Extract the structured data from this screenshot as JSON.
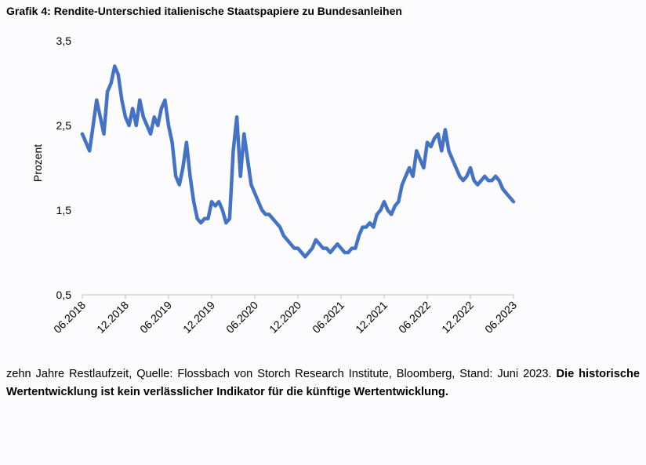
{
  "title": "Grafik 4: Rendite-Unterschied italienische Staatspapiere zu Bundesanleihen",
  "footnote": {
    "source": "zehn Jahre Restlaufzeit, Quelle: Flossbach von Storch Research Institute, Bloomberg, Stand: Juni 2023.",
    "disclaimer": "Die historische Wertentwicklung ist kein verlässlicher Indikator für die künftige Wertentwicklung."
  },
  "chart_data": {
    "type": "line",
    "title": "Grafik 4: Rendite-Unterschied italienische Staatspapiere zu Bundesanleihen",
    "xlabel": "",
    "ylabel": "Prozent",
    "ylim": [
      0.5,
      3.5
    ],
    "xlim": [
      "2018-06",
      "2023-06"
    ],
    "y_ticks": [
      "3,5",
      "2,5",
      "1,5",
      "0,5"
    ],
    "y_tick_values": [
      3.5,
      2.5,
      1.5,
      0.5
    ],
    "x_ticks": [
      "06.2018",
      "12.2018",
      "06.2019",
      "12.2019",
      "06.2020",
      "12.2020",
      "06.2021",
      "12.2021",
      "06.2022",
      "12.2022",
      "06.2023"
    ],
    "grid": false,
    "legend": "none",
    "color": "#4472c4",
    "series": [
      {
        "x": [
          "2018-06",
          "2018-06",
          "2018-07",
          "2018-07",
          "2018-08",
          "2018-08",
          "2018-09",
          "2018-09",
          "2018-10",
          "2018-10",
          "2018-11",
          "2018-11",
          "2018-12",
          "2018-12",
          "2019-01",
          "2019-01",
          "2019-02",
          "2019-02",
          "2019-03",
          "2019-03",
          "2019-04",
          "2019-04",
          "2019-05",
          "2019-05",
          "2019-06",
          "2019-06",
          "2019-07",
          "2019-07",
          "2019-08",
          "2019-08",
          "2019-09",
          "2019-09",
          "2019-10",
          "2019-10",
          "2019-11",
          "2019-11",
          "2019-12",
          "2019-12",
          "2020-01",
          "2020-01",
          "2020-02",
          "2020-02",
          "2020-03",
          "2020-03",
          "2020-04",
          "2020-04",
          "2020-05",
          "2020-05",
          "2020-06",
          "2020-06",
          "2020-07",
          "2020-07",
          "2020-08",
          "2020-08",
          "2020-09",
          "2020-09",
          "2020-10",
          "2020-10",
          "2020-11",
          "2020-11",
          "2020-12",
          "2020-12",
          "2021-01",
          "2021-01",
          "2021-02",
          "2021-02",
          "2021-03",
          "2021-03",
          "2021-04",
          "2021-04",
          "2021-05",
          "2021-05",
          "2021-06",
          "2021-06",
          "2021-07",
          "2021-07",
          "2021-08",
          "2021-08",
          "2021-09",
          "2021-09",
          "2021-10",
          "2021-10",
          "2021-11",
          "2021-11",
          "2021-12",
          "2021-12",
          "2022-01",
          "2022-01",
          "2022-02",
          "2022-02",
          "2022-03",
          "2022-03",
          "2022-04",
          "2022-04",
          "2022-05",
          "2022-05",
          "2022-06",
          "2022-06",
          "2022-07",
          "2022-07",
          "2022-08",
          "2022-08",
          "2022-09",
          "2022-09",
          "2022-10",
          "2022-10",
          "2022-11",
          "2022-11",
          "2022-12",
          "2022-12",
          "2023-01",
          "2023-01",
          "2023-02",
          "2023-02",
          "2023-03",
          "2023-03",
          "2023-04",
          "2023-04",
          "2023-05",
          "2023-05",
          "2023-06",
          "2023-06"
        ],
        "y": [
          2.4,
          2.3,
          2.2,
          2.5,
          2.8,
          2.6,
          2.4,
          2.9,
          3.0,
          3.2,
          3.1,
          2.8,
          2.6,
          2.5,
          2.7,
          2.5,
          2.8,
          2.6,
          2.5,
          2.4,
          2.6,
          2.5,
          2.7,
          2.8,
          2.5,
          2.3,
          1.9,
          1.8,
          2.0,
          2.3,
          1.9,
          1.6,
          1.4,
          1.35,
          1.4,
          1.4,
          1.6,
          1.55,
          1.6,
          1.5,
          1.35,
          1.4,
          2.2,
          2.6,
          1.9,
          2.4,
          2.1,
          1.8,
          1.7,
          1.6,
          1.5,
          1.45,
          1.45,
          1.4,
          1.35,
          1.3,
          1.2,
          1.15,
          1.1,
          1.05,
          1.05,
          1.0,
          0.95,
          1.0,
          1.05,
          1.15,
          1.1,
          1.05,
          1.05,
          1.0,
          1.05,
          1.1,
          1.05,
          1.0,
          1.0,
          1.05,
          1.05,
          1.2,
          1.3,
          1.3,
          1.35,
          1.3,
          1.45,
          1.5,
          1.6,
          1.5,
          1.45,
          1.55,
          1.6,
          1.8,
          1.9,
          2.0,
          1.9,
          2.2,
          2.1,
          2.0,
          2.3,
          2.25,
          2.35,
          2.4,
          2.2,
          2.45,
          2.2,
          2.1,
          2.0,
          1.9,
          1.85,
          1.9,
          2.0,
          1.85,
          1.8,
          1.85,
          1.9,
          1.85,
          1.85,
          1.9,
          1.85,
          1.75,
          1.7,
          1.65,
          1.6,
          1.6
        ]
      }
    ]
  }
}
